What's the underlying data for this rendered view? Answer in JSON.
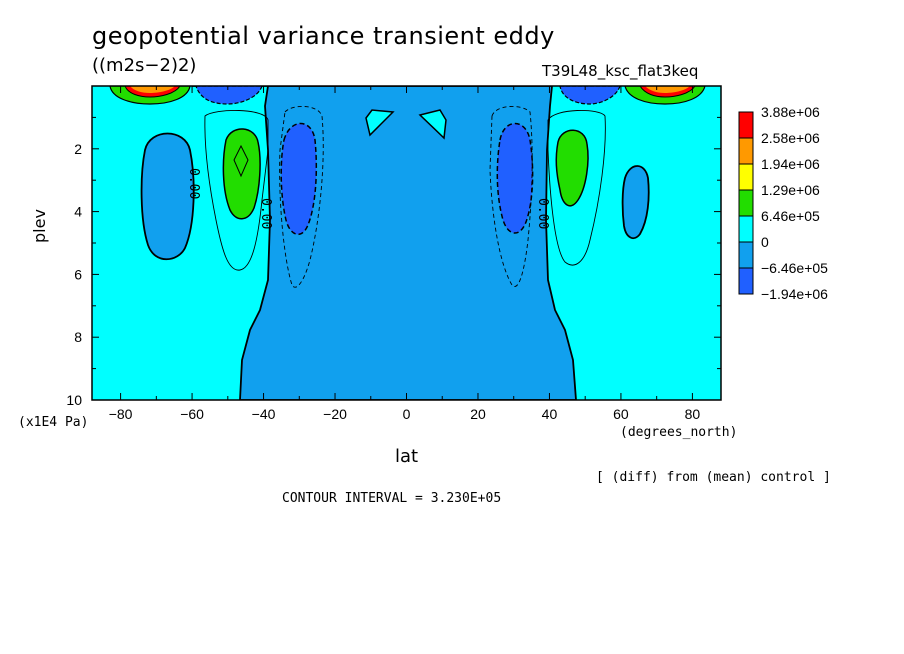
{
  "chart_data": {
    "type": "heatmap",
    "title": "geopotential variance transient eddy",
    "units": "((m2s−2)2)",
    "run_label": "T39L48_ksc_flat3keq",
    "xlabel": "lat",
    "ylabel": "plev",
    "x_units": "(degrees_north)",
    "y_units": "(x1E4 Pa)",
    "xlim": [
      -88,
      88
    ],
    "ylim": [
      0,
      10
    ],
    "y_inverted": true,
    "x_ticks": [
      "−80",
      "−60",
      "−40",
      "−20",
      "0",
      "20",
      "40",
      "60",
      "80"
    ],
    "x_tick_values": [
      -80,
      -60,
      -40,
      -20,
      0,
      20,
      40,
      60,
      80
    ],
    "y_ticks": [
      "2",
      "4",
      "6",
      "8",
      "10"
    ],
    "y_tick_values": [
      2,
      4,
      6,
      8,
      10
    ],
    "diff_note": "[ (diff) from (mean) control ]",
    "contour_interval": "CONTOUR INTERVAL = 3.230E+05",
    "contour_labels": [
      "0.00",
      "0.00",
      "0.00"
    ],
    "grid": false,
    "legend_position": "right",
    "legend": [
      {
        "label": "3.88e+06",
        "color": "#ff0000"
      },
      {
        "label": "2.58e+06",
        "color": "#ff9900"
      },
      {
        "label": "1.94e+06",
        "color": "#ffff00"
      },
      {
        "label": "1.29e+06",
        "color": "#22dd00"
      },
      {
        "label": "6.46e+05",
        "color": "#00ffff"
      },
      {
        "label": "0",
        "color": "#11a0ee"
      },
      {
        "label": "−6.46e+05",
        "color": "#2060ff"
      },
      {
        "label": "−1.94e+06",
        "color": ""
      }
    ],
    "regions": [
      {
        "name": "high-lat-south",
        "lat": [
          -88,
          -40
        ],
        "value_range": "0 to 6.46e+05"
      },
      {
        "name": "tropics",
        "lat": [
          -40,
          47
        ],
        "value_range": "-6.46e+05 to 0"
      },
      {
        "name": "high-lat-north",
        "lat": [
          47,
          88
        ],
        "value_range": "0 to 6.46e+05"
      },
      {
        "name": "green-max-south",
        "lat": -46,
        "plev": 2.6,
        "value_range": "6.46e+05 to 1.29e+06"
      },
      {
        "name": "green-max-north",
        "lat": 46,
        "plev": 2.6,
        "value_range": "6.46e+05 to 1.29e+06"
      },
      {
        "name": "blue-min-south",
        "lat": -31,
        "plev": 3,
        "value_range": "-1.94e+06 to -6.46e+05"
      },
      {
        "name": "blue-min-north",
        "lat": 31,
        "plev": 3,
        "value_range": "-1.94e+06 to -6.46e+05"
      }
    ]
  }
}
